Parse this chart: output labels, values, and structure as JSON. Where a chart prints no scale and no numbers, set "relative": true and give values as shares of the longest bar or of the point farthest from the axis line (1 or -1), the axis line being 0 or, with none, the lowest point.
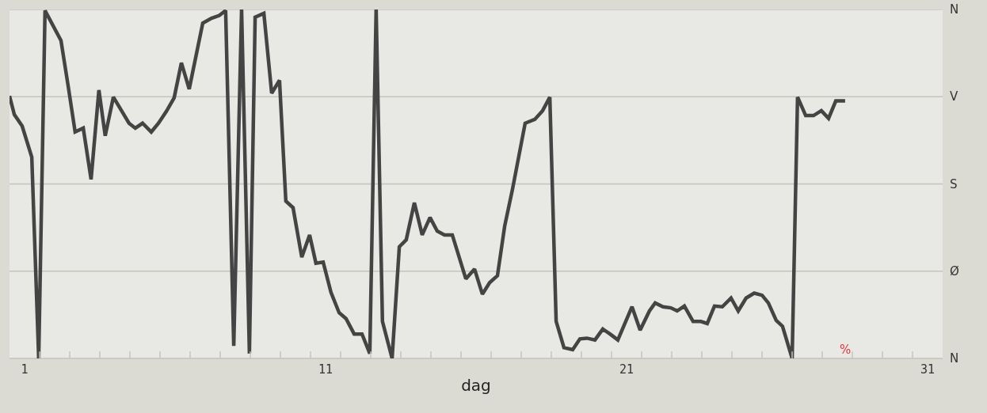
{
  "chart_data": {
    "type": "line",
    "xlabel": "dag",
    "relative": true,
    "x": [
      1.0,
      1.16,
      1.42,
      1.74,
      1.97,
      2.18,
      2.71,
      2.95,
      3.18,
      3.45,
      3.71,
      3.97,
      4.18,
      4.45,
      4.97,
      5.18,
      5.42,
      5.71,
      5.95,
      6.21,
      6.47,
      6.71,
      6.97,
      7.42,
      7.71,
      7.97,
      8.18,
      8.45,
      8.71,
      8.97,
      9.16,
      9.45,
      9.71,
      9.97,
      10.18,
      10.42,
      10.71,
      10.97,
      11.18,
      11.42,
      11.68,
      11.95,
      12.18,
      12.45,
      12.71,
      12.97,
      13.18,
      13.39,
      13.71,
      13.95,
      14.18,
      14.45,
      14.71,
      14.97,
      15.21,
      15.45,
      15.71,
      16.16,
      16.45,
      16.71,
      16.95,
      17.21,
      17.45,
      17.71,
      18.13,
      18.45,
      18.71,
      18.95,
      19.16,
      19.42,
      19.71,
      19.95,
      20.18,
      20.45,
      20.71,
      20.95,
      21.21,
      21.68,
      21.95,
      22.26,
      22.45,
      22.71,
      22.97,
      23.18,
      23.42,
      23.71,
      23.97,
      24.18,
      24.42,
      24.68,
      24.97,
      25.21,
      25.47,
      25.74,
      26.0,
      26.21,
      26.47,
      26.68,
      27.0,
      27.18,
      27.45,
      27.71,
      27.97,
      28.21,
      28.45,
      28.76
    ],
    "series": [
      {
        "color": "#444444",
        "values": [
          0.752,
          0.699,
          0.666,
          0.577,
          0,
          0.997,
          0.911,
          0.78,
          0.649,
          0.66,
          0.513,
          0.769,
          0.638,
          0.749,
          0.674,
          0.66,
          0.674,
          0.649,
          0.674,
          0.708,
          0.747,
          0.847,
          0.772,
          0.961,
          0.975,
          0.983,
          0.997,
          0.036,
          1,
          0.014,
          0.978,
          0.989,
          0.76,
          0.797,
          0.451,
          0.432,
          0.29,
          0.354,
          0.273,
          0.276,
          0.189,
          0.131,
          0.114,
          0.07,
          0.07,
          0.014,
          1,
          0.106,
          0,
          0.32,
          0.34,
          0.446,
          0.354,
          0.404,
          0.365,
          0.354,
          0.354,
          0.228,
          0.256,
          0.184,
          0.217,
          0.237,
          0.379,
          0.485,
          0.674,
          0.685,
          0.71,
          0.749,
          0.106,
          0.031,
          0.025,
          0.056,
          0.058,
          0.053,
          0.084,
          0.07,
          0.053,
          0.148,
          0.081,
          0.136,
          0.159,
          0.148,
          0.145,
          0.136,
          0.15,
          0.106,
          0.106,
          0.1,
          0.15,
          0.148,
          0.173,
          0.136,
          0.173,
          0.187,
          0.181,
          0.159,
          0.109,
          0.092,
          0,
          0.749,
          0.696,
          0.696,
          0.71,
          0.688,
          0.738,
          0.738
        ]
      }
    ],
    "xlim": [
      1,
      32
    ],
    "xticks": [
      {
        "value": 1.5,
        "label": "1"
      },
      {
        "value": 11.5,
        "label": "11"
      },
      {
        "value": 21.5,
        "label": "21"
      },
      {
        "value": 31.5,
        "label": "31"
      },
      {
        "value": 2,
        "label": null
      },
      {
        "value": 3,
        "label": null
      },
      {
        "value": 4,
        "label": null
      },
      {
        "value": 5,
        "label": null
      },
      {
        "value": 6,
        "label": null
      },
      {
        "value": 7,
        "label": null
      },
      {
        "value": 8,
        "label": null
      },
      {
        "value": 9,
        "label": null
      },
      {
        "value": 10,
        "label": null
      },
      {
        "value": 11,
        "label": null
      },
      {
        "value": 12,
        "label": null
      },
      {
        "value": 13,
        "label": null
      },
      {
        "value": 14,
        "label": null
      },
      {
        "value": 15,
        "label": null
      },
      {
        "value": 16,
        "label": null
      },
      {
        "value": 17,
        "label": null
      },
      {
        "value": 18,
        "label": null
      },
      {
        "value": 19,
        "label": null
      },
      {
        "value": 20,
        "label": null
      },
      {
        "value": 21,
        "label": null
      },
      {
        "value": 22,
        "label": null
      },
      {
        "value": 23,
        "label": null
      },
      {
        "value": 24,
        "label": null
      },
      {
        "value": 25,
        "label": null
      },
      {
        "value": 26,
        "label": null
      },
      {
        "value": 27,
        "label": null
      },
      {
        "value": 28,
        "label": null
      },
      {
        "value": 29,
        "label": null
      },
      {
        "value": 30,
        "label": null
      },
      {
        "value": 31,
        "label": null
      }
    ],
    "marker": "none",
    "line_style": "solid",
    "ref_lines": [
      {
        "axis": "y",
        "value": 0,
        "label": "N",
        "color": "#c4c4bc"
      },
      {
        "axis": "y",
        "value": 0.25,
        "label": "Ø",
        "color": "#c4c4bc"
      },
      {
        "axis": "y",
        "value": 0.5,
        "label": "S",
        "color": "#c4c4bc"
      },
      {
        "axis": "y",
        "value": 0.75,
        "label": "V",
        "color": "#c4c4bc"
      },
      {
        "axis": "y",
        "value": 1,
        "label": "N",
        "color": "#c4c4bc"
      }
    ],
    "annotations": [
      "%"
    ]
  }
}
